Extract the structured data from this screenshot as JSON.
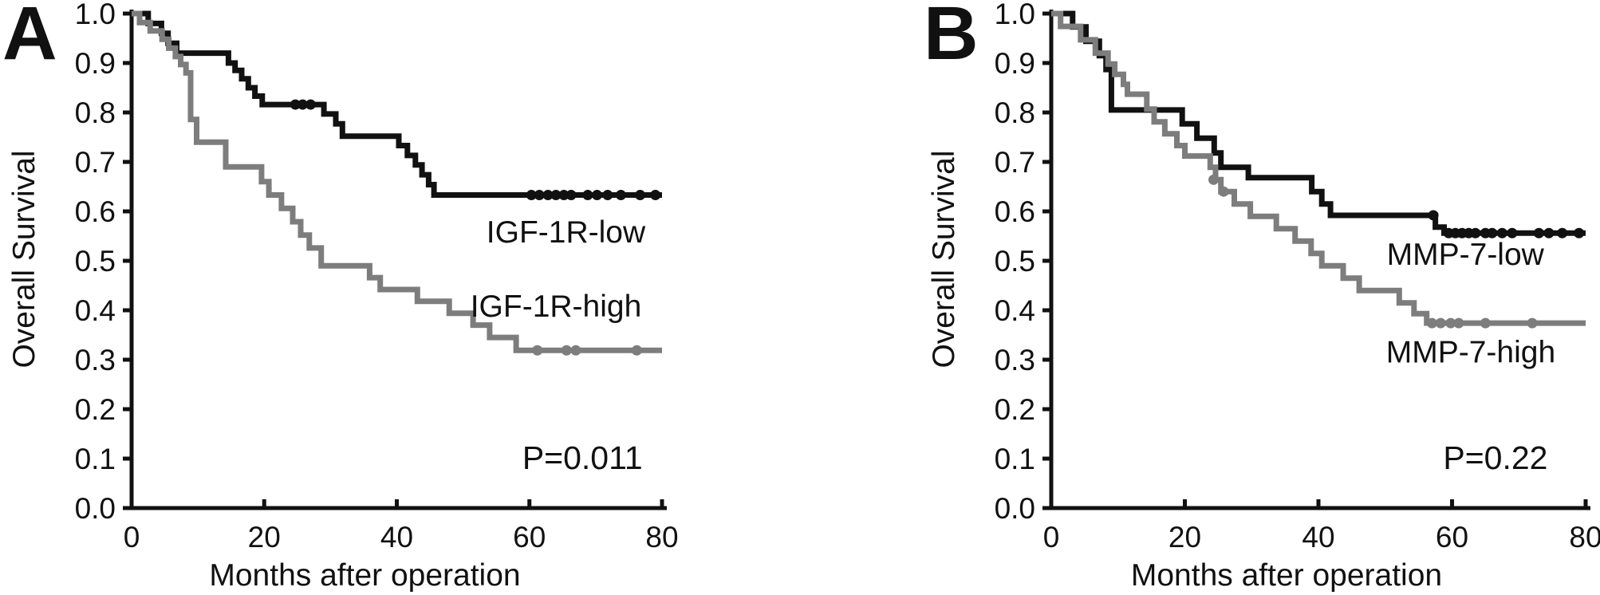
{
  "figure": {
    "background_color": "#ffffff",
    "axis_color": "#111111",
    "description": "Kaplan-Meier overall survival curves, panels A and B"
  },
  "chart_data": [
    {
      "type": "line",
      "subtype": "kaplan-meier-step",
      "panel_label": "A",
      "xlabel": "Months after operation",
      "ylabel": "Overall Survival",
      "xlim": [
        0,
        80
      ],
      "ylim": [
        0.0,
        1.0
      ],
      "xticks": [
        0,
        20,
        40,
        60,
        80
      ],
      "yticks": [
        1.0,
        0.9,
        0.8,
        0.7,
        0.6,
        0.5,
        0.4,
        0.3,
        0.2,
        0.1,
        0.0
      ],
      "ytick_labels": [
        "1.0",
        "0.9",
        "0.8",
        "0.7",
        "0.6",
        "0.5",
        "0.4",
        "0.3",
        "0.2",
        "0.1",
        "0.0"
      ],
      "grid": false,
      "legend_position": "inline-annotations",
      "series": [
        {
          "name": "IGF-1R-low",
          "color": "#111111",
          "line_width": 7,
          "points": [
            [
              0,
              1.0
            ],
            [
              2.5,
              0.98
            ],
            [
              4.5,
              0.96
            ],
            [
              5.5,
              0.94
            ],
            [
              6.8,
              0.92
            ],
            [
              14.6,
              0.9
            ],
            [
              15.6,
              0.885
            ],
            [
              16.6,
              0.868
            ],
            [
              17.6,
              0.85
            ],
            [
              18.6,
              0.833
            ],
            [
              19.7,
              0.816
            ],
            [
              29,
              0.797
            ],
            [
              30.8,
              0.777
            ],
            [
              31.8,
              0.752
            ],
            [
              40.3,
              0.733
            ],
            [
              41.6,
              0.713
            ],
            [
              42.8,
              0.694
            ],
            [
              43.8,
              0.674
            ],
            [
              44.8,
              0.654
            ],
            [
              45.6,
              0.633
            ],
            [
              80,
              0.633
            ]
          ],
          "censor_marks": [
            [
              24.7,
              0.816
            ],
            [
              25.8,
              0.816
            ],
            [
              27,
              0.816
            ],
            [
              60.3,
              0.633
            ],
            [
              61.5,
              0.633
            ],
            [
              62.8,
              0.633
            ],
            [
              64,
              0.633
            ],
            [
              65.2,
              0.633
            ],
            [
              66.3,
              0.633
            ],
            [
              68.8,
              0.633
            ],
            [
              70.2,
              0.633
            ],
            [
              71.8,
              0.633
            ],
            [
              73.8,
              0.633
            ],
            [
              76.7,
              0.633
            ],
            [
              79,
              0.633
            ]
          ],
          "label": {
            "text": "IGF-1R-low",
            "at": [
              65.5,
              0.558
            ]
          }
        },
        {
          "name": "IGF-1R-high",
          "color": "#7d7d7d",
          "line_width": 7,
          "points": [
            [
              0,
              1.0
            ],
            [
              1.2,
              0.982
            ],
            [
              2.8,
              0.965
            ],
            [
              4.6,
              0.948
            ],
            [
              5.6,
              0.93
            ],
            [
              6.6,
              0.913
            ],
            [
              7.4,
              0.897
            ],
            [
              8.2,
              0.88
            ],
            [
              8.9,
              0.786
            ],
            [
              9.8,
              0.74
            ],
            [
              14.2,
              0.69
            ],
            [
              19.6,
              0.66
            ],
            [
              20.7,
              0.633
            ],
            [
              22.6,
              0.606
            ],
            [
              24.3,
              0.579
            ],
            [
              25.5,
              0.552
            ],
            [
              26.8,
              0.526
            ],
            [
              28.6,
              0.49
            ],
            [
              35.9,
              0.466
            ],
            [
              37.5,
              0.442
            ],
            [
              43.1,
              0.418
            ],
            [
              47.9,
              0.394
            ],
            [
              51.5,
              0.37
            ],
            [
              54,
              0.345
            ],
            [
              58,
              0.319
            ],
            [
              80,
              0.319
            ]
          ],
          "censor_marks": [
            [
              61.2,
              0.319
            ],
            [
              65.6,
              0.319
            ],
            [
              67,
              0.319
            ],
            [
              76.2,
              0.319
            ]
          ],
          "label": {
            "text": "IGF-1R-high",
            "at": [
              64,
              0.408
            ]
          }
        }
      ],
      "annotations": [
        {
          "text": "P=0.011",
          "at": [
            68,
            0.1
          ]
        }
      ]
    },
    {
      "type": "line",
      "subtype": "kaplan-meier-step",
      "panel_label": "B",
      "xlabel": "Months after operation",
      "ylabel": "Overall Survival",
      "xlim": [
        0,
        80
      ],
      "ylim": [
        0.0,
        1.0
      ],
      "xticks": [
        0,
        20,
        40,
        60,
        80
      ],
      "yticks": [
        1.0,
        0.9,
        0.8,
        0.7,
        0.6,
        0.5,
        0.4,
        0.3,
        0.2,
        0.1,
        0.0
      ],
      "ytick_labels": [
        "1.0",
        "0.9",
        "0.8",
        "0.7",
        "0.6",
        "0.5",
        "0.4",
        "0.3",
        "0.2",
        "0.1",
        "0.0"
      ],
      "grid": false,
      "legend_position": "inline-annotations",
      "series": [
        {
          "name": "MMP-7-low",
          "color": "#111111",
          "line_width": 7,
          "points": [
            [
              0,
              1.0
            ],
            [
              3.2,
              0.973
            ],
            [
              5.2,
              0.944
            ],
            [
              7.2,
              0.915
            ],
            [
              8.2,
              0.887
            ],
            [
              9,
              0.805
            ],
            [
              19.6,
              0.777
            ],
            [
              21.8,
              0.748
            ],
            [
              24.4,
              0.718
            ],
            [
              25.4,
              0.689
            ],
            [
              29.5,
              0.668
            ],
            [
              39,
              0.64
            ],
            [
              40.5,
              0.615
            ],
            [
              41.8,
              0.592
            ],
            [
              57.5,
              0.568
            ],
            [
              58.8,
              0.556
            ],
            [
              80,
              0.556
            ]
          ],
          "censor_marks": [
            [
              57.2,
              0.592
            ],
            [
              59.5,
              0.556
            ],
            [
              60.5,
              0.556
            ],
            [
              61.5,
              0.556
            ],
            [
              62.5,
              0.556
            ],
            [
              63.5,
              0.556
            ],
            [
              65,
              0.556
            ],
            [
              66,
              0.556
            ],
            [
              67.5,
              0.556
            ],
            [
              69,
              0.556
            ],
            [
              73,
              0.556
            ],
            [
              74.5,
              0.556
            ],
            [
              76.5,
              0.556
            ],
            [
              79,
              0.556
            ]
          ],
          "label": {
            "text": "MMP-7-low",
            "at": [
              62,
              0.513
            ]
          }
        },
        {
          "name": "MMP-7-high",
          "color": "#7d7d7d",
          "line_width": 7,
          "points": [
            [
              0,
              1.0
            ],
            [
              1.4,
              0.974
            ],
            [
              4.4,
              0.947
            ],
            [
              6.6,
              0.92
            ],
            [
              8.5,
              0.898
            ],
            [
              9.5,
              0.877
            ],
            [
              10.8,
              0.857
            ],
            [
              11.4,
              0.837
            ],
            [
              14.3,
              0.807
            ],
            [
              15.4,
              0.781
            ],
            [
              17,
              0.757
            ],
            [
              18.8,
              0.733
            ],
            [
              20,
              0.712
            ],
            [
              23.8,
              0.689
            ],
            [
              24.6,
              0.664
            ],
            [
              25.4,
              0.64
            ],
            [
              27.4,
              0.615
            ],
            [
              29.8,
              0.59
            ],
            [
              33.7,
              0.565
            ],
            [
              36.5,
              0.54
            ],
            [
              38.9,
              0.515
            ],
            [
              40.5,
              0.49
            ],
            [
              43.7,
              0.465
            ],
            [
              46.1,
              0.44
            ],
            [
              52.1,
              0.415
            ],
            [
              54.3,
              0.393
            ],
            [
              56.2,
              0.374
            ],
            [
              80,
              0.374
            ]
          ],
          "censor_marks": [
            [
              24.3,
              0.664
            ],
            [
              25.8,
              0.64
            ],
            [
              57,
              0.374
            ],
            [
              58.3,
              0.374
            ],
            [
              59.8,
              0.374
            ],
            [
              61,
              0.374
            ],
            [
              65,
              0.374
            ],
            [
              72,
              0.374
            ]
          ],
          "label": {
            "text": "MMP-7-high",
            "at": [
              62.8,
              0.315
            ]
          }
        }
      ],
      "annotations": [
        {
          "text": "P=0.22",
          "at": [
            66.5,
            0.1
          ]
        }
      ]
    }
  ]
}
